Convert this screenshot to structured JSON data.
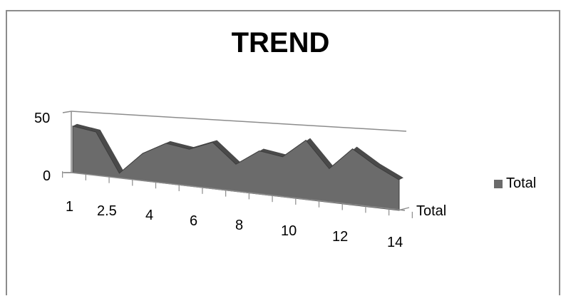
{
  "chart_data": {
    "type": "area",
    "style": "3d",
    "title": "TREND",
    "categories": [
      "1",
      "",
      "2.5",
      "",
      "4",
      "",
      "6",
      "",
      "8",
      "",
      "10",
      "",
      "12",
      "",
      "14"
    ],
    "series": [
      {
        "name": "Total",
        "values": [
          29,
          27,
          3,
          17,
          25,
          23,
          29,
          17,
          27,
          25,
          37,
          21,
          35,
          26,
          19
        ]
      }
    ],
    "depth_label": "Total",
    "y_ticks": [
      "50",
      "0"
    ],
    "ylim": [
      0,
      50
    ],
    "grid": false,
    "legend": "right",
    "colors": {
      "series": "#6b6b6b",
      "series_edge": "#3c3c3c",
      "axis": "#8c8c8c"
    }
  }
}
